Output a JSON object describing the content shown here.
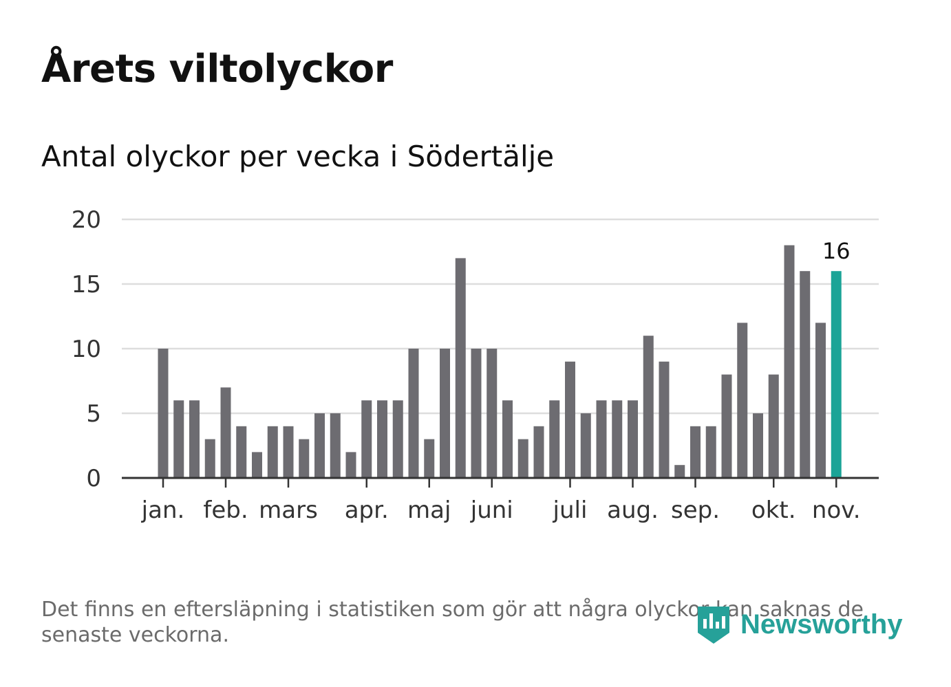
{
  "title": "Årets viltolyckor",
  "subtitle": "Antal olyckor per vecka i Södertälje",
  "footnote": "Det finns en eftersläpning i statistiken som gör att några olyckor kan saknas de senaste veckorna.",
  "brand": "Newsworthy",
  "colors": {
    "bar": "#6d6c71",
    "highlight": "#1ba497",
    "grid": "#dddddd",
    "axis": "#333333",
    "brand": "#26a199"
  },
  "chart_data": {
    "type": "bar",
    "title": "Antal olyckor per vecka i Södertälje",
    "xlabel": "",
    "ylabel": "",
    "ylim": [
      0,
      20
    ],
    "yticks": [
      0,
      5,
      10,
      15,
      20
    ],
    "grid": true,
    "month_labels": [
      {
        "label": "jan.",
        "week": 1
      },
      {
        "label": "feb.",
        "week": 5
      },
      {
        "label": "mars",
        "week": 9
      },
      {
        "label": "apr.",
        "week": 14
      },
      {
        "label": "maj",
        "week": 18
      },
      {
        "label": "juni",
        "week": 22
      },
      {
        "label": "juli",
        "week": 27
      },
      {
        "label": "aug.",
        "week": 31
      },
      {
        "label": "sep.",
        "week": 35
      },
      {
        "label": "okt.",
        "week": 40
      },
      {
        "label": "nov.",
        "week": 44
      }
    ],
    "weeks": [
      1,
      2,
      3,
      4,
      5,
      6,
      7,
      8,
      9,
      10,
      11,
      12,
      13,
      14,
      15,
      16,
      17,
      18,
      19,
      20,
      21,
      22,
      23,
      24,
      25,
      26,
      27,
      28,
      29,
      30,
      31,
      32,
      33,
      34,
      35,
      36,
      37,
      38,
      39,
      40,
      41,
      42,
      43,
      44
    ],
    "values": [
      10,
      6,
      6,
      3,
      7,
      4,
      2,
      4,
      4,
      3,
      5,
      5,
      2,
      6,
      6,
      6,
      10,
      3,
      10,
      17,
      10,
      10,
      6,
      3,
      4,
      6,
      9,
      5,
      6,
      6,
      6,
      11,
      9,
      1,
      4,
      4,
      8,
      12,
      5,
      8,
      18,
      16,
      12,
      16
    ],
    "highlight_index": 43,
    "highlight_label": "16"
  }
}
